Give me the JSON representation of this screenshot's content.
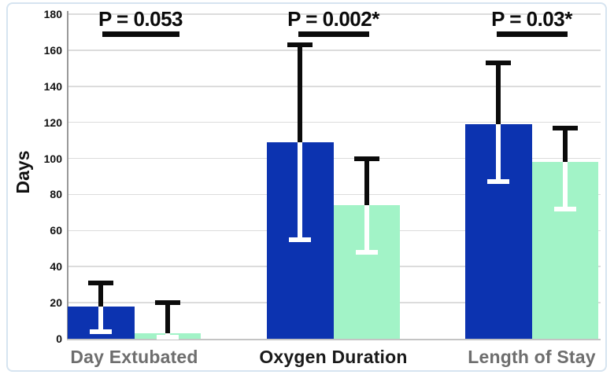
{
  "chart_data": {
    "type": "bar",
    "title": "",
    "xlabel": "",
    "ylabel": "Days",
    "ylim": [
      0,
      180
    ],
    "yticks": [
      0,
      20,
      40,
      60,
      80,
      100,
      120,
      140,
      160,
      180
    ],
    "grid": true,
    "legend": "none",
    "categories": [
      "Day Extubated",
      "Oxygen Duration",
      "Length of Stay"
    ],
    "category_label_colors": [
      "#6e6e6e",
      "#1a1a1a",
      "#6e6e6e"
    ],
    "series": [
      {
        "name": "blue",
        "color": "#0c33b0",
        "values": [
          18,
          109,
          119
        ],
        "error_upper": [
          31,
          163,
          153
        ],
        "error_lower": [
          4,
          55,
          87
        ]
      },
      {
        "name": "green",
        "color": "#a2f3c7",
        "values": [
          3,
          74,
          98
        ],
        "error_upper": [
          20,
          100,
          117
        ],
        "error_lower": [
          1,
          48,
          72
        ]
      }
    ],
    "annotations": [
      {
        "label": "P = 0.053"
      },
      {
        "label": "P = 0.002*"
      },
      {
        "label": "P = 0.03*"
      }
    ],
    "colors": {
      "frame_border": "#d6e4f0",
      "gridline": "#dcdcdc",
      "error_bar_outside": "#0b0b0b",
      "error_bar_inside": "#ffffff",
      "significance_bar": "#0b0b0b"
    }
  }
}
